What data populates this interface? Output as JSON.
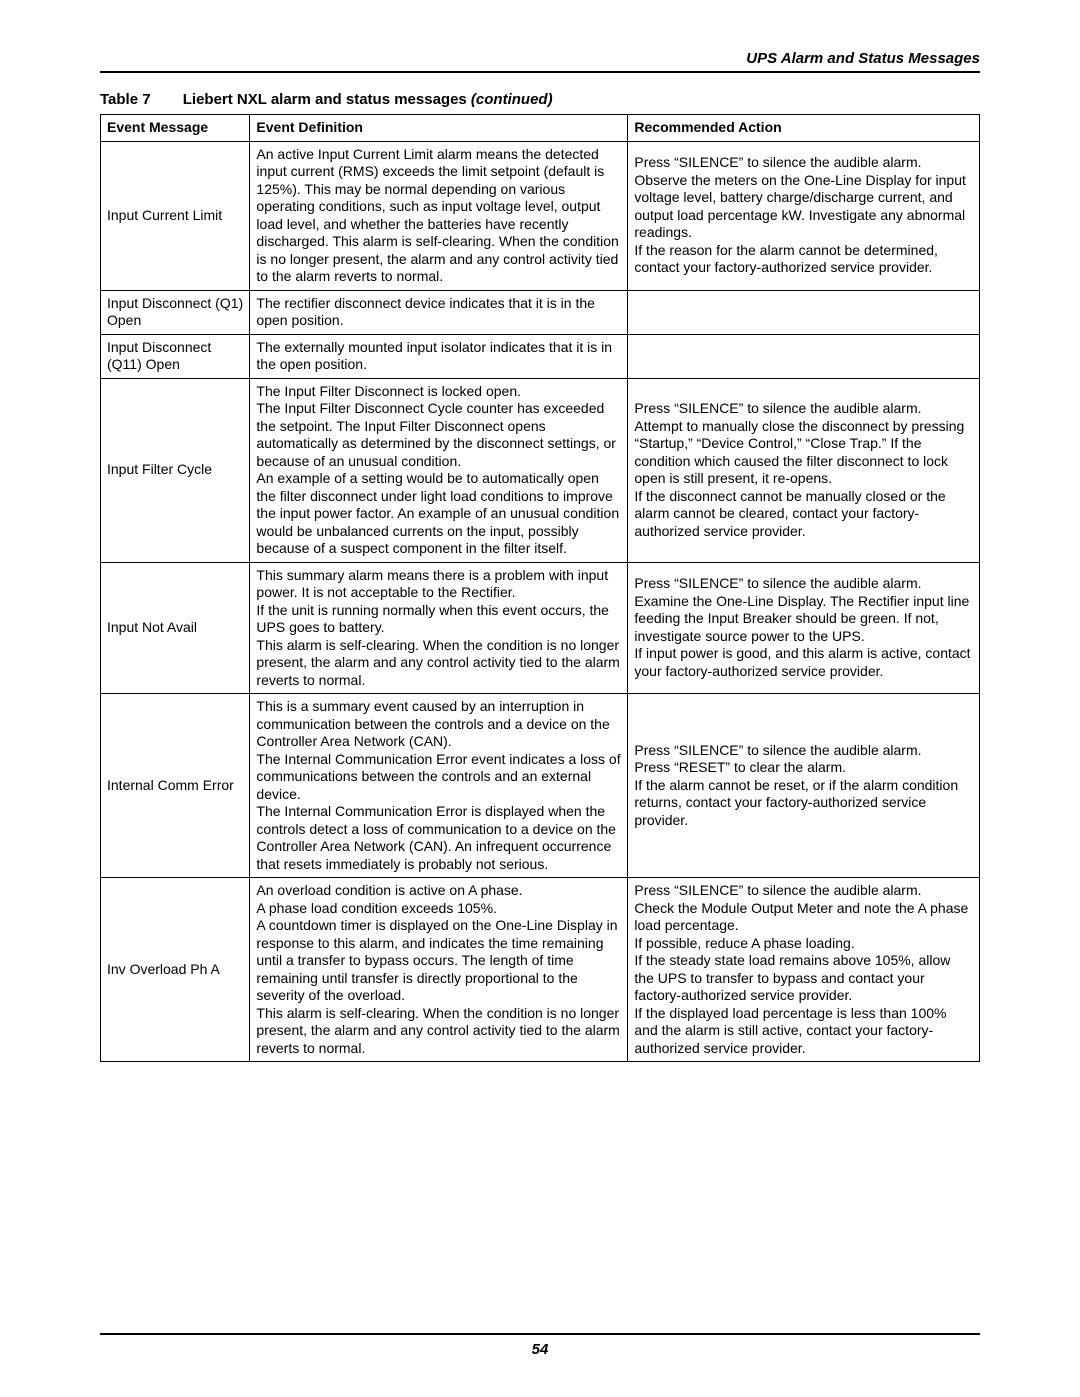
{
  "header": {
    "section_title": "UPS Alarm and Status Messages"
  },
  "table": {
    "label": "Table 7",
    "title": "Liebert NXL alarm and status messages",
    "continued": " (continued)",
    "columns": [
      "Event Message",
      "Event Definition",
      "Recommended Action"
    ],
    "rows": [
      {
        "msg": "Input Current Limit",
        "def": "An active Input Current Limit alarm means the detected input current (RMS) exceeds the limit setpoint (default is 125%). This may be normal depending on various operating conditions, such as input voltage level, output load level, and whether the batteries have recently discharged. This alarm is self-clearing. When the condition is no longer present, the alarm and any control activity tied to the alarm reverts to normal.",
        "act": "Press “SILENCE” to silence the audible alarm.\nObserve the meters on the One-Line Display for input voltage level, battery charge/discharge current, and output load percentage kW. Investigate any abnormal readings.\nIf the reason for the alarm cannot be determined, contact your factory-authorized service provider."
      },
      {
        "msg": "Input Disconnect (Q1) Open",
        "def": "The rectifier disconnect device indicates that it is in the open position.",
        "act": ""
      },
      {
        "msg": "Input Disconnect (Q11) Open",
        "def": "The externally mounted input isolator indicates that it is in the open position.",
        "act": ""
      },
      {
        "msg": "Input Filter Cycle",
        "def": "The Input Filter Disconnect is locked open.\nThe Input Filter Disconnect Cycle counter has exceeded the setpoint. The Input Filter Disconnect opens automatically as determined by the disconnect settings, or because of an unusual condition.\nAn example of a setting would be to automatically open the filter disconnect under light load conditions to improve the input power factor. An example of an unusual condition would be unbalanced currents on the input, possibly because of a suspect component in the filter itself.",
        "act": "Press “SILENCE” to silence the audible alarm.\nAttempt to manually close the disconnect by pressing “Startup,” “Device Control,” “Close Trap.” If the condition which caused the filter disconnect to lock open is still present, it re-opens.\nIf the disconnect cannot be manually closed or the alarm cannot be cleared, contact your factory-authorized service provider."
      },
      {
        "msg": "Input Not Avail",
        "def": "This summary alarm means there is a problem with input power. It is not acceptable to the Rectifier.\nIf the unit is running normally when this event occurs, the UPS goes to battery.\nThis alarm is self-clearing. When the condition is no longer present, the alarm and any control activity tied to the alarm reverts to normal.",
        "act": "Press “SILENCE” to silence the audible alarm.\nExamine the One-Line Display. The Rectifier input line feeding the Input Breaker should be green. If not, investigate source power to the UPS.\nIf input power is good, and this alarm is active, contact your factory-authorized service provider."
      },
      {
        "msg": "Internal Comm Error",
        "def": "This is a summary event caused by an interruption in communication between the controls and a device on the Controller Area Network (CAN).\nThe Internal Communication Error event indicates a loss of communications between the controls and an external device.\nThe Internal Communication Error is displayed when the controls detect a loss of communication to a device on the Controller Area Network (CAN). An infrequent occurrence that resets immediately is probably not serious.",
        "act": "Press “SILENCE” to silence the audible alarm.\nPress “RESET” to clear the alarm.\nIf the alarm cannot be reset, or if the alarm condition returns, contact your factory-authorized service provider."
      },
      {
        "msg": "Inv Overload Ph A",
        "def": "An overload condition is active on A phase.\nA phase load condition exceeds 105%.\nA countdown timer is displayed on the One-Line Display in response to this alarm, and indicates the time remaining until a transfer to bypass occurs. The length of time remaining until transfer is directly proportional to the severity of the overload.\nThis alarm is self-clearing. When the condition is no longer present, the alarm and any control activity tied to the alarm reverts to normal.",
        "act": "Press “SILENCE” to silence the audible alarm.\nCheck the Module Output Meter and note the A phase load percentage.\nIf possible, reduce A phase loading.\nIf the steady state load remains above 105%, allow the UPS to transfer to bypass and contact your factory-authorized service provider.\nIf the displayed load percentage is less than 100% and the alarm is still active, contact your factory-authorized service provider."
      }
    ]
  },
  "footer": {
    "page_number": "54"
  }
}
